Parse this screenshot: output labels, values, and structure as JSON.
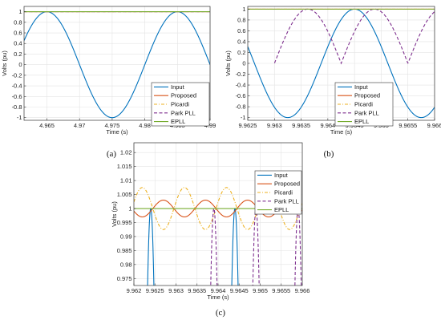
{
  "chart_data": [
    {
      "panel_label": "(a)",
      "type": "line",
      "xlabel": "Time (s)",
      "ylabel": "Volts (pu)",
      "xlim": [
        4.9615,
        4.99
      ],
      "ylim": [
        -1.05,
        1.1
      ],
      "xticks": [
        4.965,
        4.97,
        4.975,
        4.98,
        4.985,
        4.99
      ],
      "xtick_labels": [
        "4.965",
        "4.97",
        "4.975",
        "4.98",
        "4.985",
        "4.99"
      ],
      "yticks": [
        -1,
        -0.8,
        -0.6,
        -0.4,
        -0.2,
        0,
        0.2,
        0.4,
        0.6,
        0.8,
        1
      ],
      "ytick_labels": [
        "-1",
        "-0.8",
        "-0.6",
        "-0.4",
        "-0.2",
        "0",
        "0.2",
        "0.4",
        "0.6",
        "0.8",
        "1"
      ],
      "grid": true,
      "legend_position": "bottom-right",
      "series": [
        {
          "name": "Input",
          "kind": "cosine",
          "peak_time": 4.965,
          "period": 0.02,
          "amplitude": 1,
          "color": "#0072BD",
          "dash": "solid"
        },
        {
          "name": "Proposed",
          "kind": "constant",
          "value": 1,
          "color": "#D95319",
          "dash": "solid"
        },
        {
          "name": "Picardi",
          "kind": "constant",
          "value": 1,
          "color": "#EDB120",
          "dash": "dashdot"
        },
        {
          "name": "Park PLL",
          "kind": "constant",
          "value": 1,
          "color": "#7E2F8E",
          "dash": "dashed"
        },
        {
          "name": "EPLL",
          "kind": "constant",
          "value": 1,
          "color": "#77AC30",
          "dash": "solid"
        }
      ]
    },
    {
      "panel_label": "(b)",
      "type": "line",
      "xlabel": "Time (s)",
      "ylabel": "Volts (pu)",
      "xlim": [
        9.9625,
        9.966
      ],
      "ylim": [
        -1.05,
        1.05
      ],
      "xticks": [
        9.9625,
        9.963,
        9.9635,
        9.964,
        9.9645,
        9.965,
        9.9655,
        9.966
      ],
      "xtick_labels": [
        "9.9625",
        "9.963",
        "9.9635",
        "9.964",
        "9.9645",
        "9.965",
        "9.9655",
        "9.966"
      ],
      "yticks": [
        -1,
        -0.8,
        -0.6,
        -0.4,
        -0.2,
        0,
        0.2,
        0.4,
        0.6,
        0.8,
        1
      ],
      "ytick_labels": [
        "-1",
        "-0.8",
        "-0.6",
        "-0.4",
        "-0.2",
        "0",
        "0.2",
        "0.4",
        "0.6",
        "0.8",
        "1"
      ],
      "grid": true,
      "legend_position": "bottom-right",
      "series": [
        {
          "name": "Input",
          "kind": "cosine",
          "peak_time": 9.962,
          "period": 0.0025,
          "amplitude": 1,
          "color": "#0072BD",
          "dash": "solid"
        },
        {
          "name": "Proposed",
          "kind": "constant",
          "value": 1,
          "color": "#D95319",
          "dash": "solid"
        },
        {
          "name": "Picardi",
          "kind": "constant",
          "value": 1,
          "color": "#EDB120",
          "dash": "dashdot"
        },
        {
          "name": "Park PLL",
          "kind": "abs_sine",
          "zero_time": 9.963,
          "period": 0.0025,
          "amplitude": 1,
          "visible_from": 9.963,
          "color": "#7E2F8E",
          "dash": "dashed"
        },
        {
          "name": "EPLL",
          "kind": "constant",
          "value": 1,
          "color": "#77AC30",
          "dash": "solid"
        }
      ]
    },
    {
      "panel_label": "(c)",
      "type": "line",
      "xlabel": "Time (s)",
      "ylabel": "Volts (pu)",
      "xlim": [
        9.962,
        9.966
      ],
      "ylim": [
        0.9725,
        1.0235
      ],
      "xticks": [
        9.962,
        9.9625,
        9.963,
        9.9635,
        9.964,
        9.9645,
        9.965,
        9.9655,
        9.966
      ],
      "xtick_labels": [
        "9.962",
        "9.9625",
        "9.963",
        "9.9635",
        "9.964",
        "9.9645",
        "9.965",
        "9.9655",
        "9.966"
      ],
      "yticks": [
        0.975,
        0.98,
        0.985,
        0.99,
        0.995,
        1,
        1.005,
        1.01,
        1.015,
        1.02
      ],
      "ytick_labels": [
        "0.975",
        "0.98",
        "0.985",
        "0.99",
        "0.995",
        "1",
        "1.005",
        "1.01",
        "1.015",
        "1.02"
      ],
      "grid": true,
      "legend_position": "top-right",
      "series": [
        {
          "name": "Input",
          "kind": "cosine",
          "peak_time": 9.9624,
          "period": 0.002,
          "amplitude": 1,
          "color": "#0072BD",
          "dash": "solid"
        },
        {
          "name": "Proposed",
          "kind": "ripple",
          "mean": 1,
          "amp": 0.003,
          "peak_time": 9.9627,
          "period": 0.001,
          "color": "#D95319",
          "dash": "solid"
        },
        {
          "name": "Picardi",
          "kind": "ripple",
          "mean": 1,
          "amp": 0.0075,
          "peak_time": 9.9622,
          "period": 0.001,
          "color": "#EDB120",
          "dash": "dashdot"
        },
        {
          "name": "Park PLL",
          "kind": "abs_sine",
          "zero_time": 9.9634,
          "period": 0.002,
          "amplitude": 1,
          "visible_from": 9.9631,
          "color": "#7E2F8E",
          "dash": "dashed"
        },
        {
          "name": "EPLL",
          "kind": "constant",
          "value": 1,
          "color": "#77AC30",
          "dash": "solid"
        }
      ]
    }
  ]
}
